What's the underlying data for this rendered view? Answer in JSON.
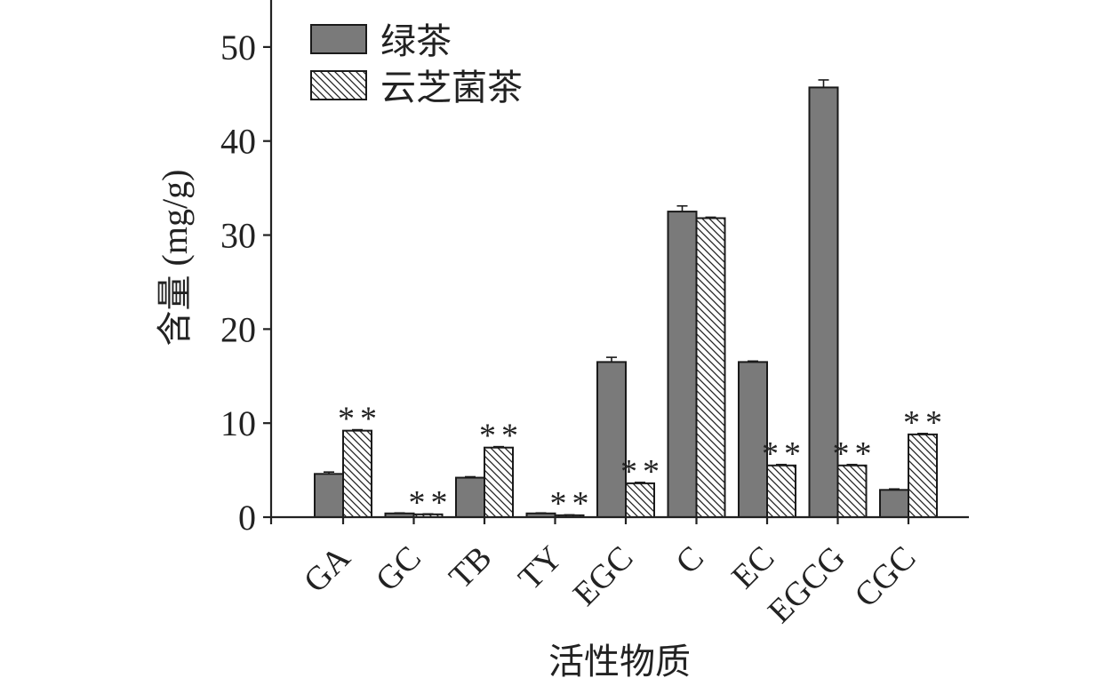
{
  "chart_data": {
    "type": "bar",
    "categories": [
      "GA",
      "GC",
      "TB",
      "TY",
      "EGC",
      "C",
      "EC",
      "EGCG",
      "CGC"
    ],
    "series": [
      {
        "name": "绿茶",
        "values": [
          4.6,
          0.4,
          4.2,
          0.4,
          16.5,
          32.5,
          16.5,
          45.7,
          2.9
        ],
        "errors": [
          0.2,
          0.05,
          0.1,
          0.05,
          0.5,
          0.6,
          0.1,
          0.8,
          0.1
        ],
        "color": "#7a7a7a",
        "fill": "solid"
      },
      {
        "name": "云芝菌茶",
        "values": [
          9.2,
          0.3,
          7.4,
          0.2,
          3.6,
          31.8,
          5.5,
          5.5,
          8.8
        ],
        "errors": [
          0.1,
          0.05,
          0.1,
          0.05,
          0.1,
          0.1,
          0.1,
          0.1,
          0.1
        ],
        "color": "#ffffff",
        "fill": "hatched"
      }
    ],
    "annotations": [
      "**",
      "**",
      "**",
      "**",
      "**",
      "",
      "**",
      "**",
      "**"
    ],
    "xlabel": "活性物质",
    "ylabel": "含量 (mg/g)",
    "ylim": [
      0,
      55
    ],
    "yticks": [
      0,
      10,
      20,
      30,
      40,
      50
    ],
    "grid": false,
    "legend": "top-left"
  }
}
